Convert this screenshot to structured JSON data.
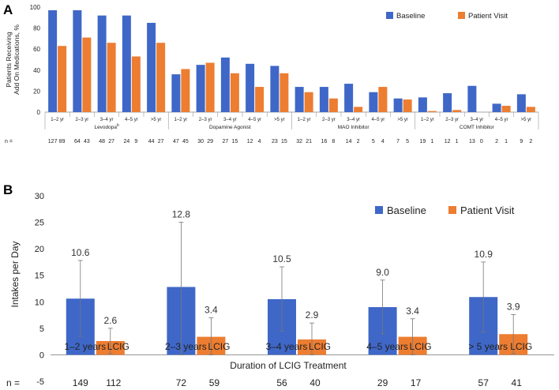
{
  "chart_data": [
    {
      "panel": "A",
      "type": "bar",
      "title": "",
      "ylabel": "Patients Receiving Add On Medications, %",
      "ylabel_lines": [
        "Patients Receiving",
        "Add On Medications, %"
      ],
      "ylim": [
        0,
        100
      ],
      "yticks": [
        0,
        20,
        40,
        60,
        80,
        100
      ],
      "legend_placement": "top-right",
      "group_labels": [
        "Levodopa",
        "Dopamine Agonist",
        "MAO Inhibitor",
        "COMT Inhibitor"
      ],
      "group_superscripts": [
        "b",
        "",
        "",
        ""
      ],
      "categories": [
        "1–2 yr",
        "2–3 yr",
        "3–4 yr",
        "4–5 yr",
        ">5 yr"
      ],
      "series": [
        {
          "name": "Baseline",
          "color": "#3F67C8",
          "values": [
            [
              97,
              97,
              92,
              92,
              85
            ],
            [
              36,
              45,
              52,
              46,
              44
            ],
            [
              24,
              24,
              27,
              19,
              13
            ],
            [
              14,
              18,
              25,
              8,
              17
            ]
          ]
        },
        {
          "name": "Patient Visit",
          "color": "#ED7D31",
          "values": [
            [
              63,
              71,
              66,
              53,
              66
            ],
            [
              41,
              47,
              37,
              24,
              37
            ],
            [
              19,
              13,
              5,
              24,
              12
            ],
            [
              1,
              2,
              0,
              6,
              5
            ]
          ]
        }
      ],
      "n_label": "n =",
      "n_values": [
        [
          [
            "127",
            "89"
          ],
          [
            "64",
            "43"
          ],
          [
            "48",
            "27"
          ],
          [
            "24",
            "9"
          ],
          [
            "44",
            "27"
          ]
        ],
        [
          [
            "47",
            "45"
          ],
          [
            "30",
            "29"
          ],
          [
            "27",
            "15"
          ],
          [
            "12",
            "4"
          ],
          [
            "23",
            "15"
          ]
        ],
        [
          [
            "32",
            "21"
          ],
          [
            "16",
            "8"
          ],
          [
            "14",
            "2"
          ],
          [
            "5",
            "4"
          ],
          [
            "7",
            "5"
          ]
        ],
        [
          [
            "19",
            "1"
          ],
          [
            "12",
            "1"
          ],
          [
            "13",
            "0"
          ],
          [
            "2",
            "1"
          ],
          [
            "9",
            "2"
          ]
        ]
      ]
    },
    {
      "panel": "B",
      "type": "bar",
      "title": "",
      "xlabel": "Duration of LCIG Treatment",
      "ylabel": "Intakes per Day",
      "ylim": [
        -5,
        30
      ],
      "yticks": [
        -5,
        0,
        5,
        10,
        15,
        20,
        25,
        30
      ],
      "legend_placement": "top-right",
      "categories": [
        "1–2 years",
        "2–3 years",
        "3–4 years",
        "4–5 years",
        "> 5 years"
      ],
      "category_suffix": "LCIG",
      "series": [
        {
          "name": "Baseline",
          "color": "#3F67C8",
          "values": [
            10.6,
            12.8,
            10.5,
            9.0,
            10.9
          ],
          "labels": [
            "10.6",
            "12.8",
            "10.5",
            "9.0",
            "10.9"
          ],
          "err_low": [
            3.5,
            0.0,
            4.5,
            4.0,
            4.3
          ],
          "err_high": [
            17.8,
            25.0,
            16.6,
            14.1,
            17.5
          ]
        },
        {
          "name": "Patient Visit",
          "color": "#ED7D31",
          "values": [
            2.6,
            3.4,
            2.9,
            3.4,
            3.9
          ],
          "labels": [
            "2.6",
            "3.4",
            "2.9",
            "3.4",
            "3.9"
          ],
          "err_low": [
            0.2,
            0.0,
            0.0,
            0.0,
            0.2
          ],
          "err_high": [
            5.0,
            7.0,
            6.0,
            6.8,
            7.6
          ]
        }
      ],
      "n_label": "n =",
      "n_values": [
        [
          "149",
          "112"
        ],
        [
          "72",
          "59"
        ],
        [
          "56",
          "40"
        ],
        [
          "29",
          "17"
        ],
        [
          "57",
          "41"
        ]
      ]
    }
  ]
}
